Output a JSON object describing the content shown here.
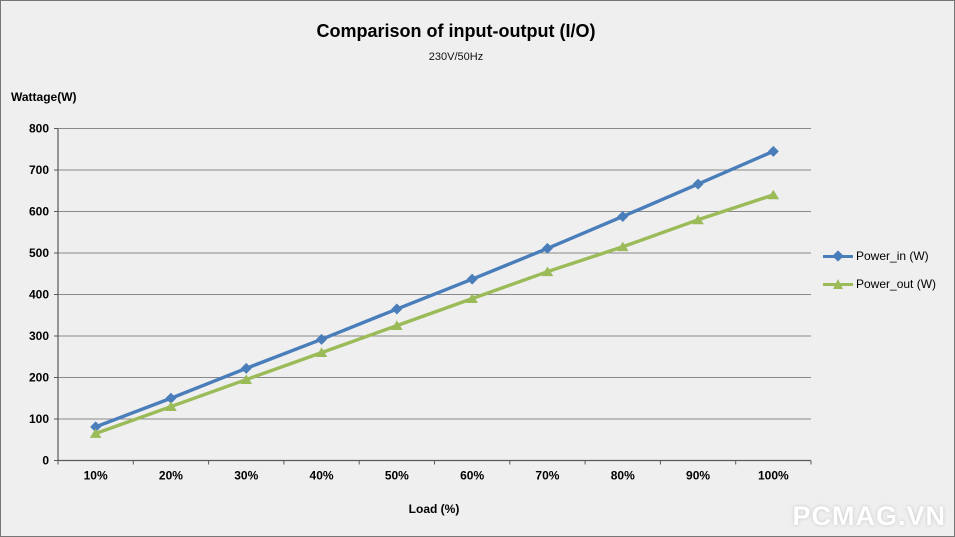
{
  "chart_data": {
    "type": "line",
    "title": "Comparison of input-output (I/O)",
    "subtitle": "230V/50Hz",
    "xlabel": "Load (%)",
    "ylabel": "Wattage(W)",
    "categories": [
      "10%",
      "20%",
      "30%",
      "40%",
      "50%",
      "60%",
      "70%",
      "80%",
      "90%",
      "100%"
    ],
    "y_ticks": [
      0,
      100,
      200,
      300,
      400,
      500,
      600,
      700,
      800
    ],
    "ylim": [
      0,
      800
    ],
    "grid": true,
    "legend_position": "right",
    "series": [
      {
        "name": "Power_in (W)",
        "marker": "diamond",
        "color": "#4a7ebb",
        "values": [
          81,
          150,
          222,
          292,
          365,
          437,
          511,
          588,
          666,
          745
        ]
      },
      {
        "name": "Power_out (W)",
        "marker": "triangle",
        "color": "#9bbb59",
        "values": [
          65,
          130,
          195,
          260,
          325,
          390,
          455,
          515,
          580,
          640
        ]
      }
    ]
  },
  "watermark": {
    "text": "PCMAG.VN"
  },
  "colors": {
    "background": "#efefef",
    "gridline": "#8a8a8a",
    "axis": "#595959",
    "tick_label": "#000000"
  }
}
